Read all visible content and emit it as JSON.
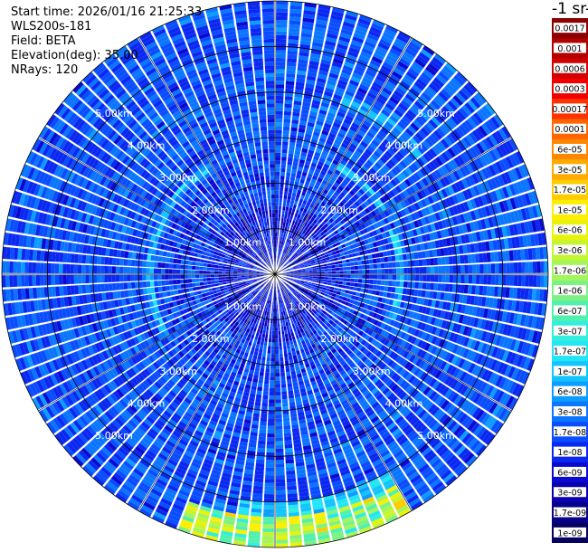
{
  "header": {
    "start_time": "Start time: 2026/01/16 21:25:33",
    "instrument": "WLS200s-181",
    "field": "Field: BETA",
    "elevation": "Elevation(deg): 35.00",
    "nrays": "NRays: 120"
  },
  "colorbar": {
    "unit_label": "-1 sr-",
    "labels": [
      "0.0017",
      "0.001",
      "0.0006",
      "0.0003",
      "0.00017",
      "0.0001",
      "6e-05",
      "3e-05",
      "1.7e-05",
      "1e-05",
      "6e-06",
      "3e-06",
      "1.7e-06",
      "1e-06",
      "6e-07",
      "3e-07",
      "1.7e-07",
      "1e-07",
      "6e-08",
      "3e-08",
      "1.7e-08",
      "1e-08",
      "6e-09",
      "3e-09",
      "1.7e-09",
      "1e-09"
    ],
    "colors": [
      "#8b0000",
      "#b20000",
      "#d40000",
      "#f20000",
      "#ff3300",
      "#ff6600",
      "#ff8800",
      "#ffaa00",
      "#ffcc00",
      "#ffee00",
      "#e8f20a",
      "#c4f532",
      "#a3f55a",
      "#7cf285",
      "#52f0ad",
      "#33eedd",
      "#22e6f5",
      "#13c4ff",
      "#0d9cff",
      "#0a75ff",
      "#0a4dff",
      "#0a28f0",
      "#0a0ad0",
      "#0a00b0",
      "#08008a",
      "#060060"
    ]
  },
  "chart_data": {
    "type": "heatmap",
    "projection": "polar-ppi",
    "rays": 120,
    "max_range_km": 6,
    "range_ring_labels": [
      "1.00km",
      "2.00km",
      "3.00km",
      "4.00km",
      "5.00km"
    ],
    "range_rings_km": [
      1,
      2,
      3,
      4,
      5
    ],
    "color_scale": "log",
    "value_range": [
      1e-09,
      0.0017
    ],
    "grid": true
  }
}
